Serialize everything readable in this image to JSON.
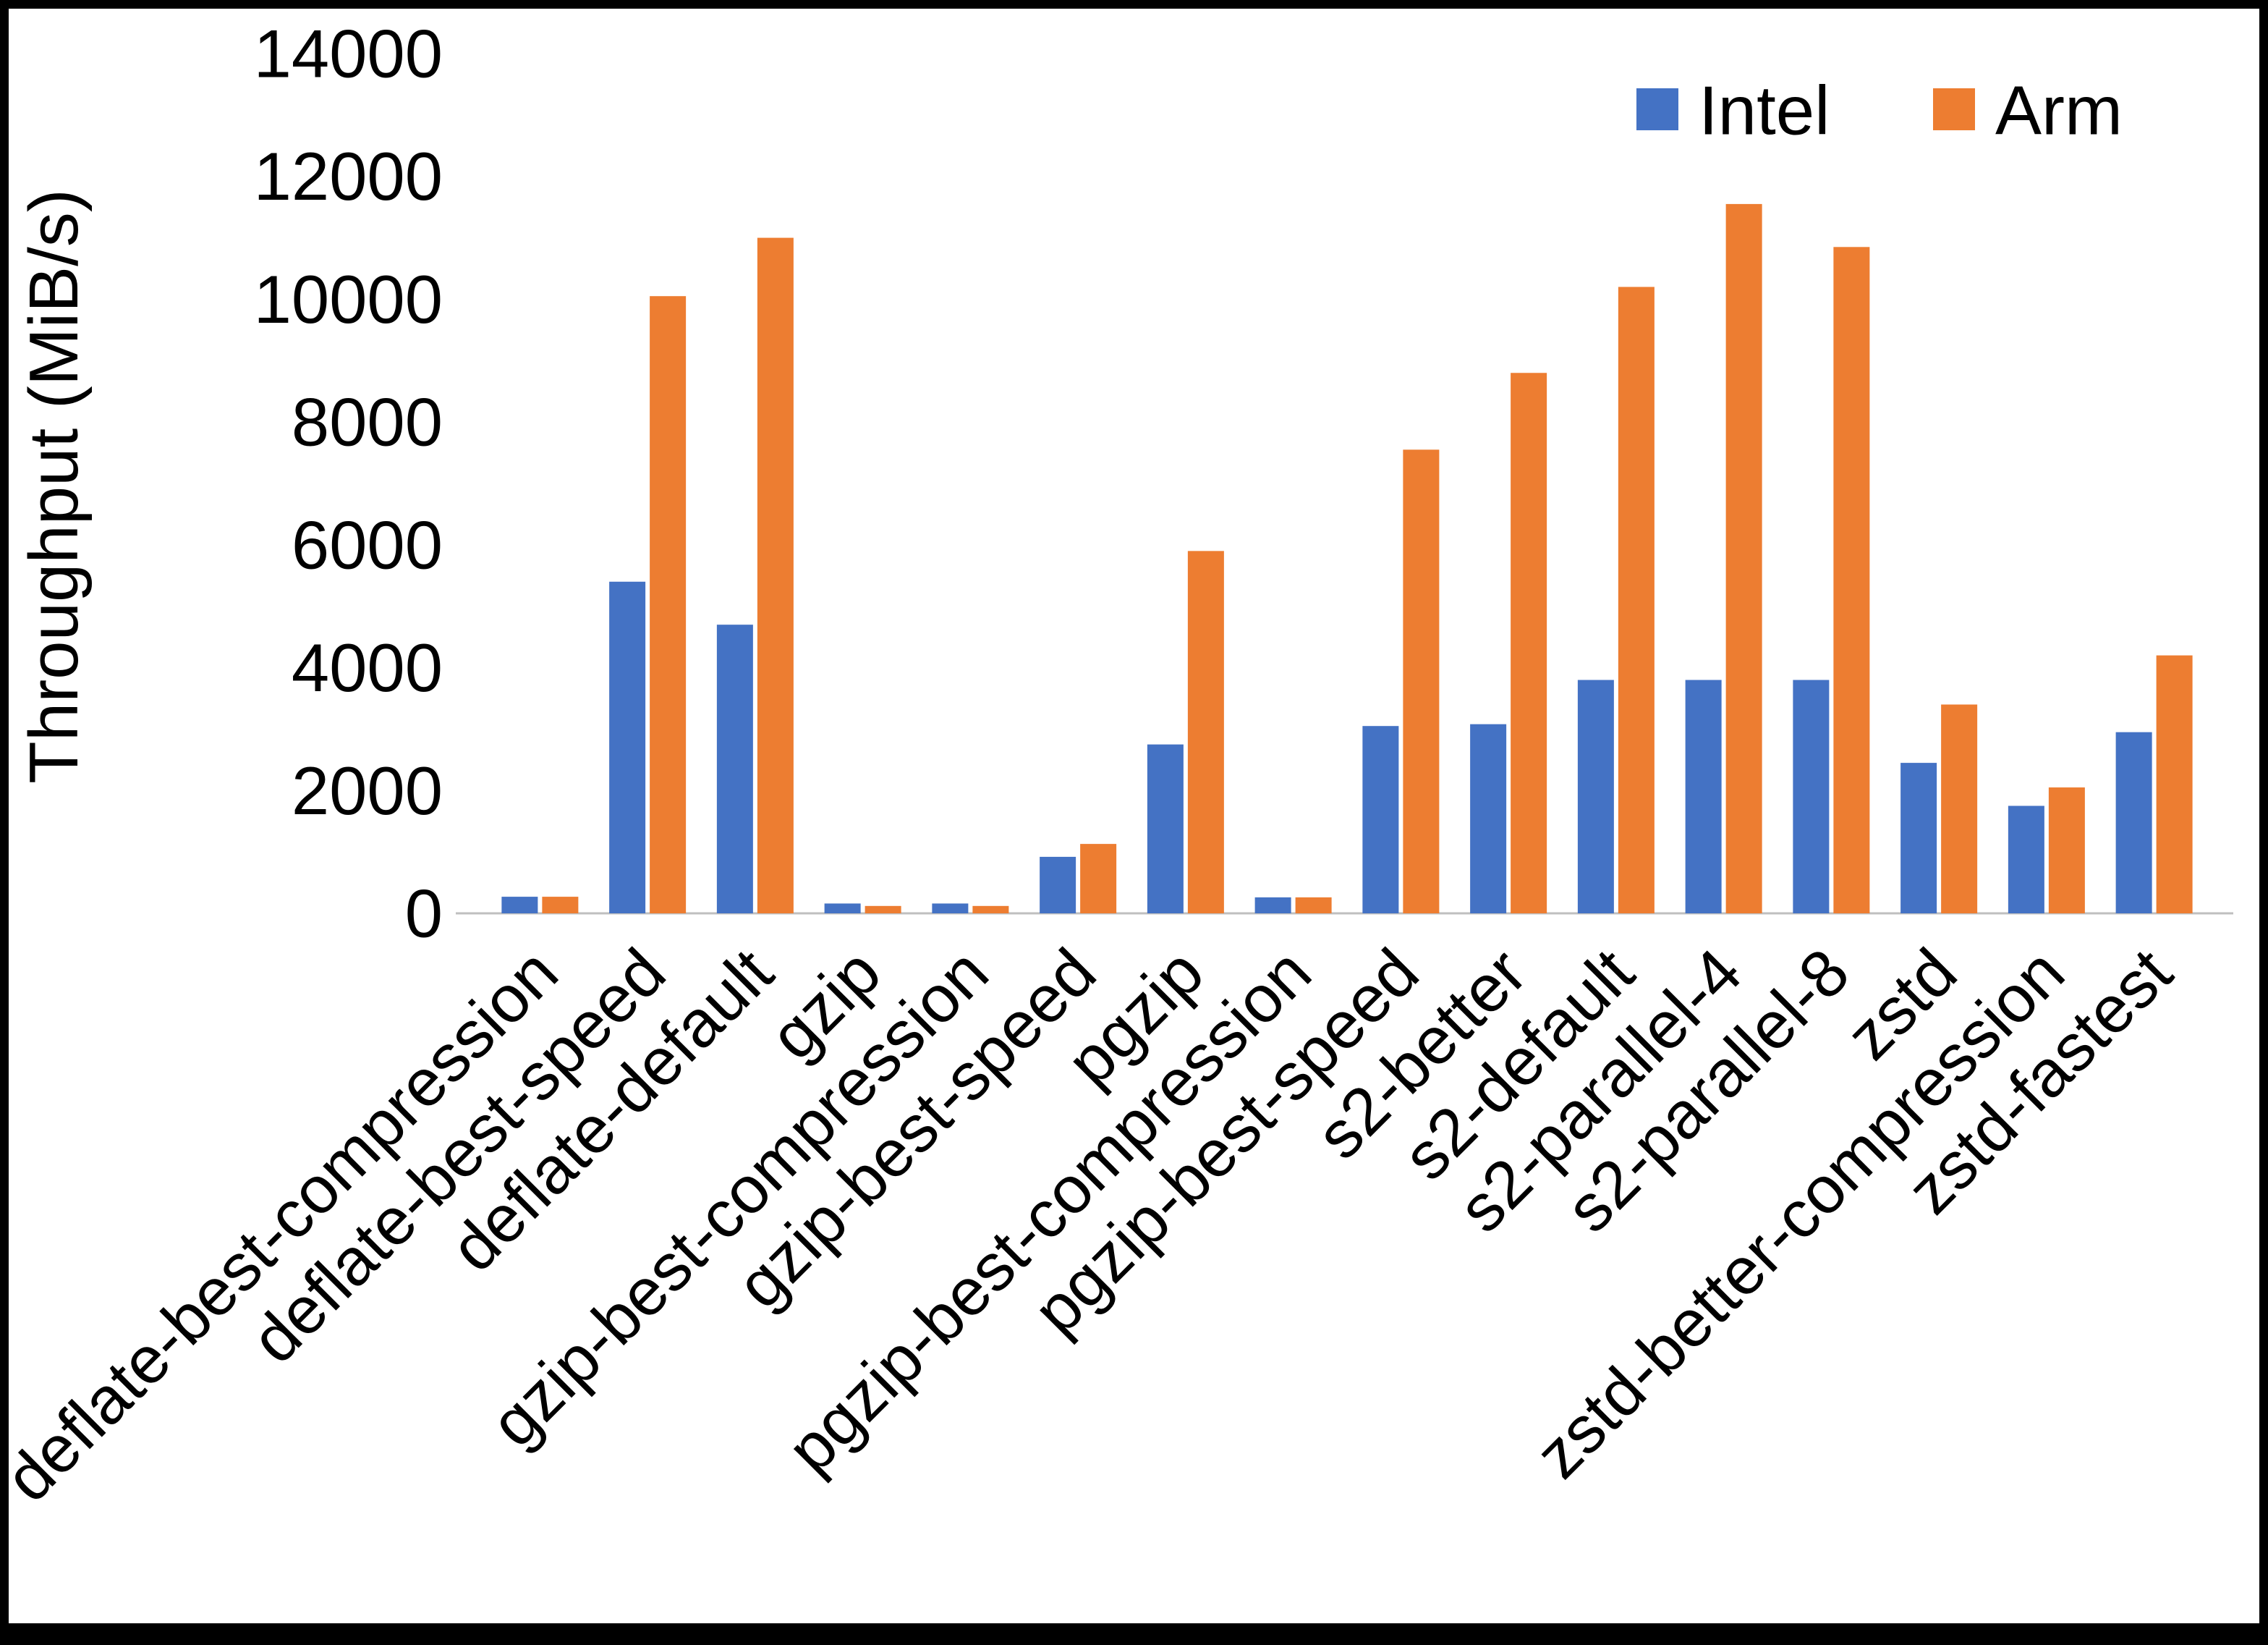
{
  "chart_data": {
    "type": "bar",
    "title": "",
    "xlabel": "",
    "ylabel": "Throughput (MiB/s)",
    "ylim": [
      0,
      14000
    ],
    "yticks": [
      0,
      2000,
      4000,
      6000,
      8000,
      10000,
      12000,
      14000
    ],
    "grid": false,
    "legend_position": "top-right",
    "categories": [
      "deflate-best-compression",
      "deflate-best-speed",
      "deflate-default",
      "gzip",
      "gzip-best-compression",
      "gzip-best-speed",
      "pgzip",
      "pgzip-best-compression",
      "pgzip-best-speed",
      "s2-better",
      "s2-default",
      "s2-parallel-4",
      "s2-parallel-8",
      "zstd",
      "zstd-better-compression",
      "zstd-fastest"
    ],
    "series": [
      {
        "name": "Intel",
        "color": "#4472C4",
        "values": [
          270,
          5400,
          4700,
          160,
          160,
          920,
          2750,
          260,
          3050,
          3080,
          3800,
          3800,
          3800,
          2450,
          1750,
          2950
        ]
      },
      {
        "name": "Arm",
        "color": "#ED7D31",
        "values": [
          270,
          10050,
          11000,
          120,
          120,
          1130,
          5900,
          260,
          7550,
          8800,
          10200,
          11550,
          10850,
          3400,
          2050,
          4200
        ]
      }
    ],
    "colors": {
      "axis_line": "#bfbfbf",
      "text": "#000000",
      "background": "#ffffff"
    }
  }
}
